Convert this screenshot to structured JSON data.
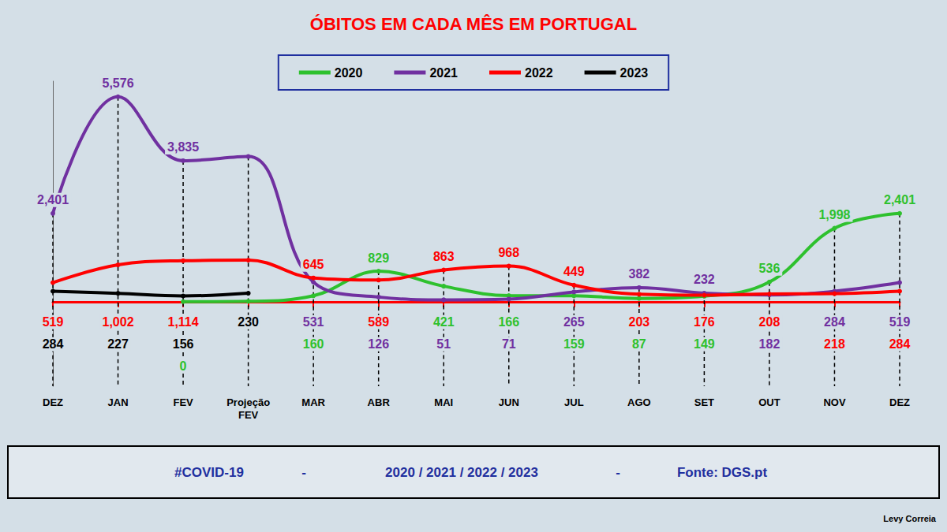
{
  "chart_data": {
    "type": "line",
    "title": "ÓBITOS EM CADA MÊS EM PORTUGAL",
    "categories": [
      "DEZ",
      "JAN",
      "FEV",
      "Projeção FEV",
      "MAR",
      "ABR",
      "MAI",
      "JUN",
      "JUL",
      "AGO",
      "SET",
      "OUT",
      "NOV",
      "DEZ"
    ],
    "series": [
      {
        "name": "2020",
        "color": "#2ec12e",
        "values": [
          null,
          null,
          0,
          10,
          160,
          829,
          421,
          166,
          159,
          87,
          149,
          536,
          1998,
          2401
        ],
        "value_labels": [
          null,
          null,
          "0",
          null,
          "160",
          "829",
          "421",
          "166",
          "159",
          "87",
          "149",
          "536",
          "1,998",
          "2,401"
        ]
      },
      {
        "name": "2021",
        "color": "#7030a0",
        "values": [
          2401,
          5576,
          3835,
          3950,
          531,
          126,
          51,
          71,
          265,
          382,
          232,
          182,
          284,
          519
        ],
        "value_labels": [
          "2,401",
          "5,576",
          "3,835",
          null,
          "531",
          "126",
          "51",
          "71",
          "265",
          "382",
          "232",
          "182",
          "284",
          "519"
        ]
      },
      {
        "name": "2022",
        "color": "#ff0000",
        "values": [
          519,
          1002,
          1114,
          1130,
          645,
          589,
          863,
          968,
          449,
          203,
          176,
          208,
          218,
          284
        ],
        "value_labels": [
          "519",
          "1,002",
          "1,114",
          null,
          "645",
          "589",
          "863",
          "968",
          "449",
          "203",
          "176",
          "208",
          "218",
          "284"
        ]
      },
      {
        "name": "2023",
        "color": "#000000",
        "values": [
          284,
          227,
          156,
          230,
          null,
          null,
          null,
          null,
          null,
          null,
          null,
          null,
          null,
          null
        ],
        "value_labels": [
          "284",
          "227",
          "156",
          "230",
          null,
          null,
          null,
          null,
          null,
          null,
          null,
          null,
          null,
          null
        ]
      }
    ],
    "ylim": [
      -2300,
      6000
    ],
    "tick_labels": "x",
    "grid": false,
    "legend": "top",
    "data_labels": true,
    "marker": "circle",
    "footer": [
      "#COVID-19",
      "-",
      "2020 / 2021 / 2022 / 2023",
      "-",
      "Fonte: DGS.pt"
    ],
    "author": "Levy Correia"
  }
}
